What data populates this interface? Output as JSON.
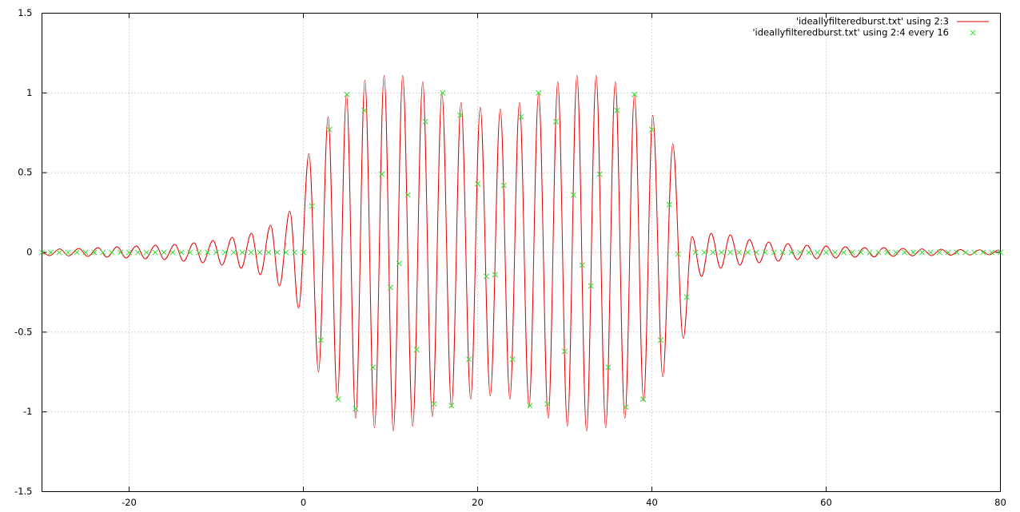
{
  "chart_data": {
    "type": "line",
    "xlim": [
      -30,
      80
    ],
    "xticks": [
      -20,
      0,
      20,
      40,
      60,
      80
    ],
    "ylim": [
      -1.5,
      1.5
    ],
    "yticks": [
      -1.5,
      -1,
      -0.5,
      0,
      0.5,
      1,
      1.5
    ],
    "grid": true,
    "legend": "top-right",
    "series": [
      {
        "name": "'ideallyfilteredburst.txt' using 2:3",
        "color": "#e00000",
        "style": "lines",
        "x": [
          -30,
          -29.15,
          -27.96,
          -26.95,
          -25.76,
          -24.75,
          -23.56,
          -22.55,
          -21.36,
          -20.35,
          -19.16,
          -18.15,
          -16.96,
          -15.95,
          -14.76,
          -13.75,
          -12.56,
          -11.55,
          -10.36,
          -9.35,
          -8.16,
          -7.15,
          -5.96,
          -4.95,
          -3.76,
          -2.75,
          -1.56,
          -0.55,
          0.64,
          1.74,
          2.84,
          3.9,
          4.95,
          6.0,
          7.06,
          8.16,
          9.27,
          10.33,
          11.4,
          12.55,
          13.7,
          14.8,
          15.9,
          17.0,
          18.1,
          19.2,
          20.3,
          21.45,
          22.6,
          23.7,
          24.8,
          25.9,
          27.0,
          28.1,
          29.2,
          30.3,
          31.4,
          32.5,
          33.6,
          34.7,
          35.8,
          36.9,
          38.0,
          39.05,
          40.1,
          41.25,
          42.4,
          43.6,
          44.6,
          45.7,
          46.8,
          47.9,
          49.0,
          50.1,
          51.2,
          52.3,
          53.4,
          54.5,
          55.6,
          56.7,
          57.8,
          58.9,
          60.0,
          61.1,
          62.2,
          63.3,
          64.4,
          65.5,
          66.6,
          67.7,
          68.8,
          69.9,
          71.0,
          72.1,
          73.2,
          74.3,
          75.4,
          76.5,
          77.6,
          78.7,
          79.8,
          80
        ],
        "values": [
          0,
          -0.02,
          0.022,
          -0.022,
          0.025,
          -0.025,
          0.03,
          -0.03,
          0.035,
          -0.035,
          0.04,
          -0.04,
          0.045,
          -0.045,
          0.05,
          -0.055,
          0.06,
          -0.065,
          0.075,
          -0.08,
          0.095,
          -0.1,
          0.12,
          -0.14,
          0.17,
          -0.21,
          0.26,
          -0.35,
          0.62,
          -0.75,
          0.85,
          -0.92,
          0.99,
          -1.04,
          1.08,
          -1.1,
          1.11,
          -1.12,
          1.11,
          -1.09,
          1.07,
          -1.03,
          1.0,
          -0.97,
          0.94,
          -0.92,
          0.91,
          -0.9,
          0.9,
          -0.92,
          0.94,
          -0.97,
          1.0,
          -1.04,
          1.07,
          -1.09,
          1.11,
          -1.12,
          1.11,
          -1.1,
          1.07,
          -1.04,
          0.99,
          -0.93,
          0.86,
          -0.78,
          0.68,
          -0.54,
          0.1,
          -0.15,
          0.12,
          -0.1,
          0.11,
          -0.08,
          0.08,
          -0.065,
          0.065,
          -0.055,
          0.055,
          -0.045,
          0.045,
          -0.04,
          0.04,
          -0.035,
          0.035,
          -0.03,
          0.03,
          -0.028,
          0.03,
          -0.025,
          0.025,
          -0.022,
          0.022,
          -0.02,
          0.02,
          -0.018,
          0.018,
          -0.016,
          0.016,
          -0.015,
          0.015,
          0
        ]
      },
      {
        "name": "'ideallyfilteredburst.txt' using 2:4 every 16",
        "color": "#33dd33",
        "style": "points",
        "x": [
          -30,
          -29,
          -28,
          -27,
          -26,
          -25,
          -24,
          -23,
          -22,
          -21,
          -20,
          -19,
          -18,
          -17,
          -16,
          -15,
          -14,
          -13,
          -12,
          -11,
          -10,
          -9,
          -8,
          -7,
          -6,
          -5,
          -4,
          -3,
          -2,
          -1,
          0,
          1,
          2,
          3,
          4,
          5,
          6,
          7,
          8,
          9,
          10,
          11,
          12,
          13,
          14,
          15,
          16,
          17,
          18,
          19,
          20,
          21,
          22,
          23,
          24,
          25,
          26,
          27,
          28,
          29,
          30,
          31,
          32,
          33,
          34,
          35,
          36,
          37,
          38,
          39,
          40,
          41,
          42,
          43,
          44,
          45,
          46,
          47,
          48,
          49,
          50,
          51,
          52,
          53,
          54,
          55,
          56,
          57,
          58,
          59,
          60,
          61,
          62,
          63,
          64,
          65,
          66,
          67,
          68,
          69,
          70,
          71,
          72,
          73,
          74,
          75,
          76,
          77,
          78,
          79,
          80
        ],
        "values": [
          0,
          0,
          0,
          0,
          0,
          0,
          0,
          0,
          0,
          0,
          0,
          0,
          0,
          0,
          0,
          0,
          0,
          0,
          0,
          0,
          0,
          0,
          0,
          0,
          0,
          0,
          0,
          0,
          0,
          0,
          0,
          0.29,
          -0.55,
          0.77,
          -0.92,
          0.99,
          -0.98,
          0.89,
          -0.72,
          0.49,
          -0.22,
          -0.07,
          0.36,
          -0.61,
          0.82,
          -0.95,
          1.0,
          -0.96,
          0.86,
          -0.67,
          0.43,
          -0.15,
          -0.14,
          0.42,
          -0.67,
          0.85,
          -0.96,
          1.0,
          -0.95,
          0.82,
          -0.62,
          0.36,
          -0.08,
          -0.21,
          0.49,
          -0.72,
          0.89,
          -0.97,
          0.99,
          -0.92,
          0.77,
          -0.55,
          0.3,
          -0.01,
          -0.28,
          0,
          0,
          0,
          0,
          0,
          0,
          0,
          0,
          0,
          0,
          0,
          0,
          0,
          0,
          0,
          0,
          0,
          0,
          0,
          0,
          0,
          0,
          0,
          0,
          0,
          0,
          0,
          0,
          0,
          0,
          0,
          0,
          0,
          0,
          0,
          0
        ]
      }
    ]
  }
}
